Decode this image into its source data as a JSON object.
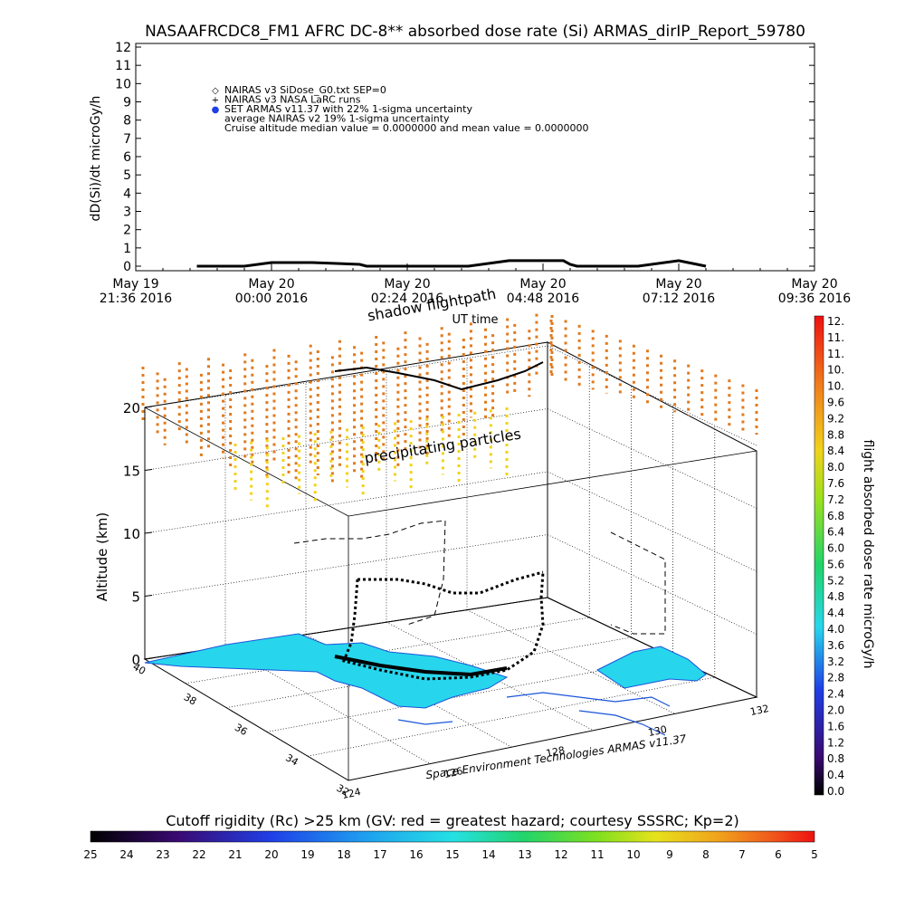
{
  "title": "NASAAFRCDC8_FM1 AFRC DC-8** absorbed dose rate (Si) ARMAS_dirIP_Report_59780",
  "chart_data": [
    {
      "type": "line",
      "ylabel": "dD(Si)/dt microGy/h",
      "xlabel": "UT time",
      "ylim": [
        0,
        12
      ],
      "y_ticks": [
        "0",
        "1",
        "2",
        "3",
        "4",
        "5",
        "6",
        "7",
        "8",
        "9",
        "10",
        "11",
        "12"
      ],
      "x_ticks": [
        {
          "date": "May 19",
          "time": "21:36 2016"
        },
        {
          "date": "May 20",
          "time": "00:00 2016"
        },
        {
          "date": "May 20",
          "time": "02:24 2016"
        },
        {
          "date": "May 20",
          "time": "04:48 2016"
        },
        {
          "date": "May 20",
          "time": "07:12 2016"
        },
        {
          "date": "May 20",
          "time": "09:36 2016"
        }
      ],
      "legend": [
        {
          "symbol": "◇",
          "text": "NAIRAS v3 SiDose_G0.txt SEP=0"
        },
        {
          "symbol": "+",
          "text": "NAIRAS v3 NASA LaRC runs"
        },
        {
          "symbol": "●",
          "text": "SET ARMAS v11.37 with 22% 1-sigma uncertainty"
        },
        {
          "symbol": "",
          "text": "average NAIRAS v2 19% 1-sigma uncertainty"
        },
        {
          "symbol": "",
          "text": "Cruise altitude median value = 0.0000000 and mean value = 0.0000000"
        }
      ],
      "series": [
        {
          "x": [
            0.9,
            1.6,
            2.0,
            2.6,
            3.3,
            3.4,
            3.6,
            4.0,
            4.5,
            4.9,
            5.5,
            6.0,
            6.3,
            6.4,
            6.5,
            6.6,
            6.8,
            7.0,
            7.4,
            8.0,
            8.4
          ],
          "y": [
            0,
            0,
            0.2,
            0.2,
            0.1,
            0,
            0,
            0,
            0,
            0,
            0.3,
            0.3,
            0.3,
            0.1,
            0,
            0,
            0,
            0,
            0,
            0.3,
            0
          ]
        }
      ]
    },
    {
      "type": "scatter3d",
      "zlabel": "Altitude (km)",
      "z_ticks": [
        "0",
        "5",
        "10",
        "15",
        "20"
      ],
      "lat_ticks": [
        "40",
        "38",
        "36",
        "34",
        "32"
      ],
      "lon_ticks": [
        "124",
        "126",
        "128",
        "130",
        "132"
      ],
      "annotations": [
        "shadow flightpath",
        "precipitating particles"
      ],
      "credit": "Space Environment Technologies ARMAS v11.37",
      "colorbar_label": "flight absorbed dose rate microGy/h",
      "colorbar_ticks": [
        "12.",
        "11.",
        "11.",
        "10.",
        "10.",
        "9.6",
        "9.2",
        "8.8",
        "8.4",
        "8.0",
        "7.6",
        "7.2",
        "6.8",
        "6.4",
        "6.0",
        "5.6",
        "5.2",
        "4.8",
        "4.4",
        "4.0",
        "3.6",
        "3.2",
        "2.8",
        "2.4",
        "2.0",
        "1.6",
        "1.2",
        "0.8",
        "0.4",
        "0.0"
      ]
    }
  ],
  "bottom_colorbar": {
    "label": "Cutoff rigidity (Rc) >25 km (GV: red = greatest hazard; courtesy SSSRC; Kp=2)",
    "ticks": [
      "25",
      "24",
      "23",
      "22",
      "21",
      "20",
      "19",
      "18",
      "17",
      "16",
      "15",
      "14",
      "13",
      "12",
      "11",
      "10",
      "9",
      "8",
      "7",
      "6",
      "5"
    ]
  },
  "colors": {
    "ocean": "#27d6ec",
    "coast": "#1a55d8",
    "precip_top": "#e07a1e",
    "precip_bottom": "#f2d21a",
    "track": "#000000"
  }
}
